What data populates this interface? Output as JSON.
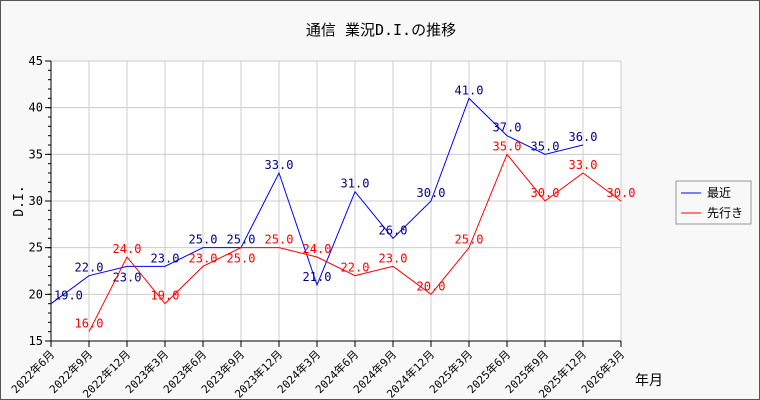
{
  "chart_data": {
    "type": "line",
    "title": "通信 業況D.I.の推移",
    "xlabel": "年月",
    "ylabel": "D.I.",
    "ylim": [
      15,
      45
    ],
    "yticks": [
      15,
      20,
      25,
      30,
      35,
      40,
      45
    ],
    "grid": true,
    "legend_position": "right",
    "categories": [
      "2022年6月",
      "2022年9月",
      "2022年12月",
      "2023年3月",
      "2023年6月",
      "2023年9月",
      "2023年12月",
      "2024年3月",
      "2024年6月",
      "2024年9月",
      "2024年12月",
      "2025年3月",
      "2025年6月",
      "2025年9月",
      "2025年12月",
      "2026年3月"
    ],
    "series": [
      {
        "name": "最近",
        "color": "#0000ff",
        "label_color": "#000080",
        "values": [
          19,
          22,
          23,
          23,
          25,
          25,
          33,
          21,
          31,
          26,
          30,
          41,
          37,
          35,
          36,
          null
        ]
      },
      {
        "name": "先行き",
        "color": "#ff0000",
        "label_color": "#ff0000",
        "values": [
          null,
          16,
          24,
          19,
          23,
          25,
          25,
          24,
          22,
          23,
          20,
          25,
          35,
          30,
          33,
          30
        ]
      }
    ]
  }
}
